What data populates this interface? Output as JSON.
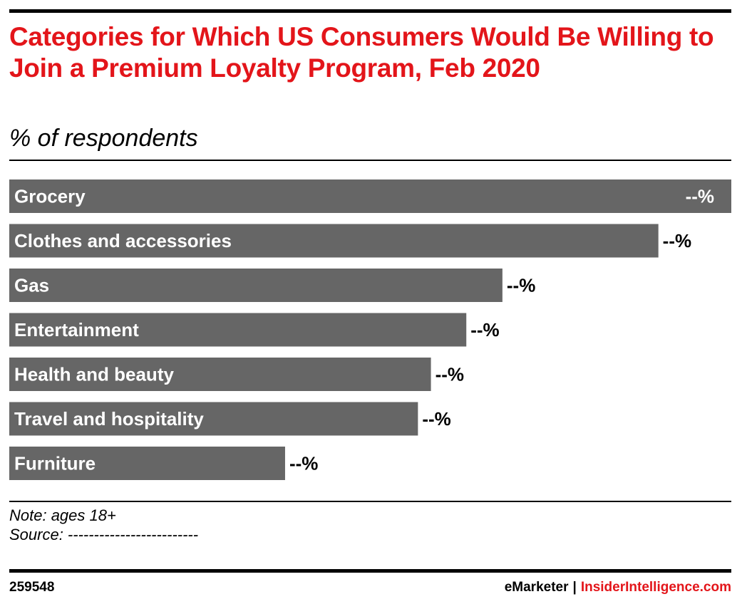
{
  "header": {
    "title": "Categories for Which US Consumers Would Be Willing to Join a Premium Loyalty Program, Feb 2020",
    "subtitle": "% of respondents"
  },
  "footer": {
    "note": "Note: ages 18+",
    "source": "Source: -------------------------",
    "chart_id": "259548",
    "brand_left": "eMarketer",
    "brand_separator": "|",
    "brand_right": "InsiderIntelligence.com"
  },
  "colors": {
    "title": "#e3151a",
    "bar": "#666666",
    "accent": "#e3151a"
  },
  "chart_data": {
    "type": "bar",
    "orientation": "horizontal",
    "title": "Categories for Which US Consumers Would Be Willing to Join a Premium Loyalty Program, Feb 2020",
    "subtitle": "% of respondents",
    "xlabel": "",
    "ylabel": "",
    "categories": [
      "Grocery",
      "Clothes and accessories",
      "Gas",
      "Entertainment",
      "Health and beauty",
      "Travel and hospitality",
      "Furniture"
    ],
    "values": [
      100,
      89.9,
      68.3,
      63.3,
      58.4,
      56.6,
      38.2
    ],
    "value_labels": [
      "--%",
      "--%",
      "--%",
      "--%",
      "--%",
      "--%",
      "--%"
    ],
    "xlim": [
      0,
      100
    ],
    "grid": false,
    "legend": "none"
  }
}
